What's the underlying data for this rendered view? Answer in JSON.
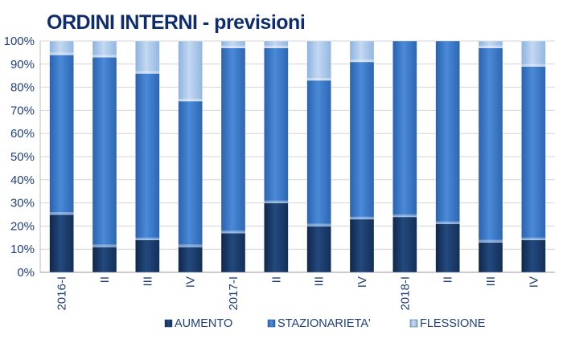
{
  "chart_data": {
    "type": "bar",
    "stacked": true,
    "title": "ORDINI INTERNI",
    "title_suffix": " - previsioni",
    "categories": [
      "2016-I",
      "II",
      "III",
      "IV",
      "2017-I",
      "II",
      "III",
      "IV",
      "2018-I",
      "II",
      "III",
      "IV"
    ],
    "series": [
      {
        "name": "AUMENTO",
        "values": [
          25,
          11,
          14,
          11,
          17,
          30,
          20,
          23,
          24,
          21,
          13,
          14
        ],
        "color": "#1a3c6c"
      },
      {
        "name": "STAZIONARIETA'",
        "values": [
          69,
          82,
          72,
          63,
          80,
          67,
          63,
          68,
          76,
          79,
          84,
          75
        ],
        "color": "#3a78c8"
      },
      {
        "name": "FLESSIONE",
        "values": [
          6,
          7,
          14,
          26,
          3,
          3,
          17,
          9,
          0,
          0,
          3,
          11
        ],
        "color": "#a9c6ea"
      }
    ],
    "ylim": [
      0,
      100
    ],
    "yticks": [
      "0%",
      "10%",
      "20%",
      "30%",
      "40%",
      "50%",
      "60%",
      "70%",
      "80%",
      "90%",
      "100%"
    ],
    "grid": true,
    "legend_position": "bottom"
  }
}
